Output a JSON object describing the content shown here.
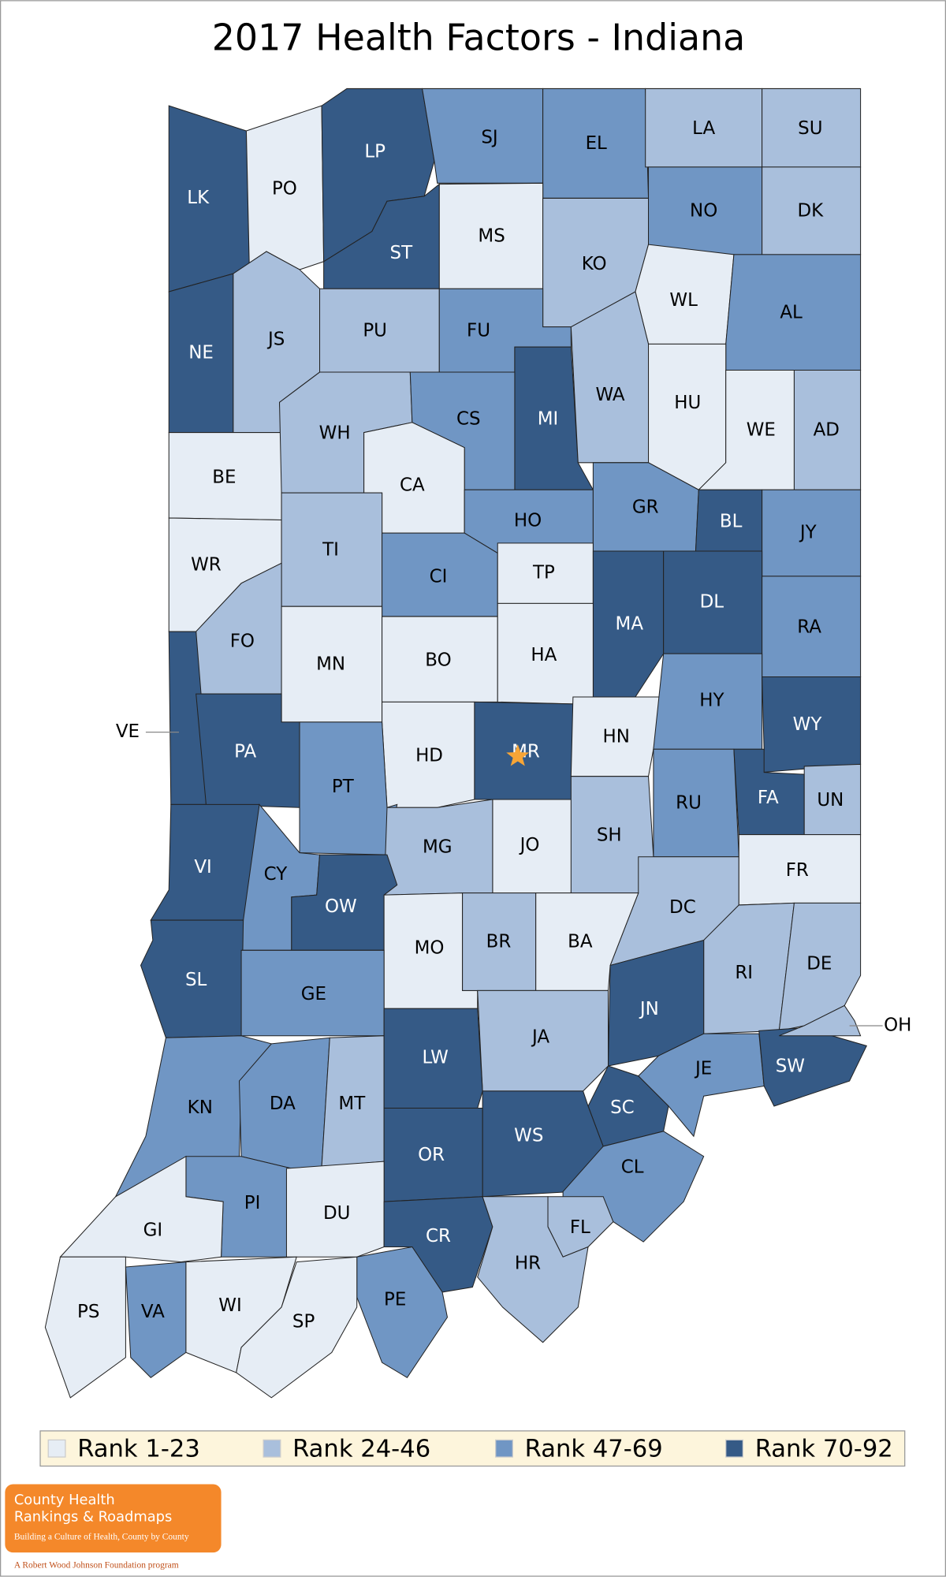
{
  "title": "2017 Health Factors - Indiana",
  "legend": [
    {
      "label": "Rank 1-23",
      "color": "#e6edf5"
    },
    {
      "label": "Rank 24-46",
      "color": "#a9bfdc"
    },
    {
      "label": "Rank 47-69",
      "color": "#7096c4"
    },
    {
      "label": "Rank 70-92",
      "color": "#355a86"
    }
  ],
  "counties": [
    {
      "label": "LK",
      "tier": 3
    },
    {
      "label": "PO",
      "tier": 0
    },
    {
      "label": "LP",
      "tier": 3
    },
    {
      "label": "SJ",
      "tier": 2
    },
    {
      "label": "EL",
      "tier": 2
    },
    {
      "label": "LA",
      "tier": 1
    },
    {
      "label": "SU",
      "tier": 1
    },
    {
      "label": "ST",
      "tier": 3
    },
    {
      "label": "MS",
      "tier": 0
    },
    {
      "label": "KO",
      "tier": 1
    },
    {
      "label": "NO",
      "tier": 2
    },
    {
      "label": "DK",
      "tier": 1
    },
    {
      "label": "WL",
      "tier": 0
    },
    {
      "label": "AL",
      "tier": 2
    },
    {
      "label": "NE",
      "tier": 3
    },
    {
      "label": "JS",
      "tier": 1
    },
    {
      "label": "PU",
      "tier": 1
    },
    {
      "label": "FU",
      "tier": 2
    },
    {
      "label": "MI",
      "tier": 3
    },
    {
      "label": "WA",
      "tier": 1
    },
    {
      "label": "HU",
      "tier": 0
    },
    {
      "label": "WE",
      "tier": 0
    },
    {
      "label": "AD",
      "tier": 1
    },
    {
      "label": "BE",
      "tier": 0
    },
    {
      "label": "WH",
      "tier": 1
    },
    {
      "label": "CS",
      "tier": 2
    },
    {
      "label": "CA",
      "tier": 0
    },
    {
      "label": "HO",
      "tier": 2
    },
    {
      "label": "GR",
      "tier": 2
    },
    {
      "label": "BL",
      "tier": 3
    },
    {
      "label": "JY",
      "tier": 2
    },
    {
      "label": "WR",
      "tier": 0
    },
    {
      "label": "TI",
      "tier": 1
    },
    {
      "label": "CI",
      "tier": 2
    },
    {
      "label": "TP",
      "tier": 0
    },
    {
      "label": "MA",
      "tier": 3
    },
    {
      "label": "DL",
      "tier": 3
    },
    {
      "label": "RA",
      "tier": 2
    },
    {
      "label": "FO",
      "tier": 1
    },
    {
      "label": "MN",
      "tier": 0
    },
    {
      "label": "BO",
      "tier": 0
    },
    {
      "label": "HA",
      "tier": 0
    },
    {
      "label": "VE",
      "tier": 3
    },
    {
      "label": "PA",
      "tier": 3
    },
    {
      "label": "HD",
      "tier": 0
    },
    {
      "label": "MR",
      "tier": 3
    },
    {
      "label": "HN",
      "tier": 0
    },
    {
      "label": "HY",
      "tier": 2
    },
    {
      "label": "WY",
      "tier": 3
    },
    {
      "label": "PT",
      "tier": 2
    },
    {
      "label": "RU",
      "tier": 2
    },
    {
      "label": "FA",
      "tier": 3
    },
    {
      "label": "UN",
      "tier": 1
    },
    {
      "label": "JO",
      "tier": 0
    },
    {
      "label": "SH",
      "tier": 1
    },
    {
      "label": "MG",
      "tier": 1
    },
    {
      "label": "VI",
      "tier": 3
    },
    {
      "label": "CY",
      "tier": 2
    },
    {
      "label": "OW",
      "tier": 3
    },
    {
      "label": "DC",
      "tier": 1
    },
    {
      "label": "FR",
      "tier": 0
    },
    {
      "label": "MO",
      "tier": 0
    },
    {
      "label": "BR",
      "tier": 1
    },
    {
      "label": "BA",
      "tier": 0
    },
    {
      "label": "SL",
      "tier": 3
    },
    {
      "label": "GE",
      "tier": 2
    },
    {
      "label": "RI",
      "tier": 1
    },
    {
      "label": "DE",
      "tier": 1
    },
    {
      "label": "JN",
      "tier": 3
    },
    {
      "label": "JA",
      "tier": 1
    },
    {
      "label": "KN",
      "tier": 2
    },
    {
      "label": "DA",
      "tier": 2
    },
    {
      "label": "MT",
      "tier": 1
    },
    {
      "label": "LW",
      "tier": 3
    },
    {
      "label": "JE",
      "tier": 2
    },
    {
      "label": "SW",
      "tier": 3
    },
    {
      "label": "OH",
      "tier": 1
    },
    {
      "label": "SC",
      "tier": 3
    },
    {
      "label": "WS",
      "tier": 3
    },
    {
      "label": "OR",
      "tier": 3
    },
    {
      "label": "CL",
      "tier": 2
    },
    {
      "label": "PI",
      "tier": 2
    },
    {
      "label": "DU",
      "tier": 0
    },
    {
      "label": "GI",
      "tier": 0
    },
    {
      "label": "CR",
      "tier": 3
    },
    {
      "label": "FL",
      "tier": 1
    },
    {
      "label": "HR",
      "tier": 1
    },
    {
      "label": "PE",
      "tier": 2
    },
    {
      "label": "PS",
      "tier": 0
    },
    {
      "label": "VA",
      "tier": 2
    },
    {
      "label": "WI",
      "tier": 0
    },
    {
      "label": "SP",
      "tier": 0
    }
  ],
  "logo": {
    "line1": "County Health",
    "line2": "Rankings & Roadmaps",
    "tagline": "Building a Culture of Health, County by County",
    "footer": "A Robert Wood Johnson Foundation program"
  }
}
